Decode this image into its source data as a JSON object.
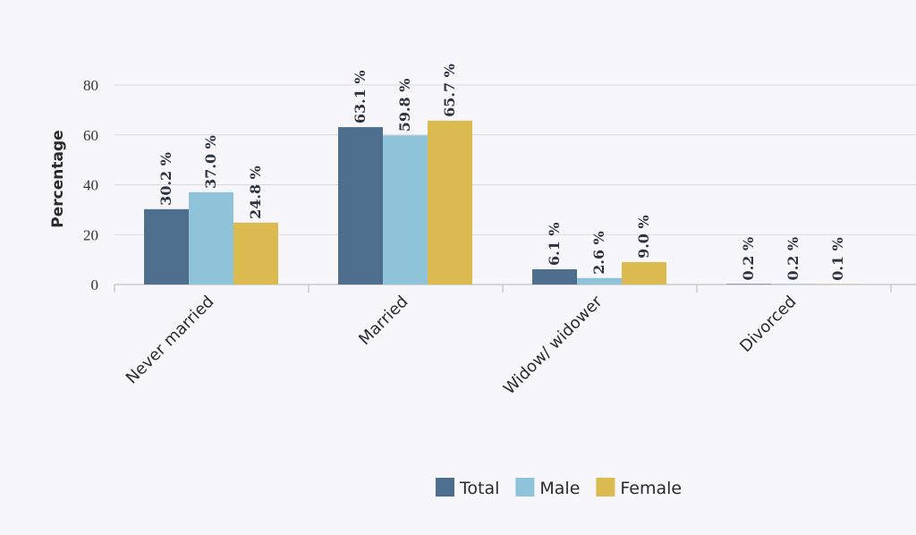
{
  "chart_data": {
    "type": "bar",
    "categories": [
      "Never married",
      "Married",
      "Widow/ widower",
      "Divorced"
    ],
    "series": [
      {
        "name": "Total",
        "color": "#4e6e8e",
        "values": [
          30.2,
          63.1,
          6.1,
          0.2
        ],
        "labels": [
          "30.2 %",
          "63.1 %",
          "6.1 %",
          "0.2 %"
        ]
      },
      {
        "name": "Male",
        "color": "#8ec3da",
        "values": [
          37.0,
          59.8,
          2.6,
          0.2
        ],
        "labels": [
          "37.0 %",
          "59.8 %",
          "2.6 %",
          "0.2 %"
        ]
      },
      {
        "name": "Female",
        "color": "#dbbb4f",
        "values": [
          24.8,
          65.7,
          9.0,
          0.1
        ],
        "labels": [
          "24.8 %",
          "65.7 %",
          "9.0 %",
          "0.1 %"
        ]
      }
    ],
    "ylabel": "Percentage",
    "xlabel": "",
    "ylim": [
      0,
      80
    ],
    "yticks": [
      0,
      20,
      40,
      60,
      80
    ],
    "ytick_labels": [
      "0",
      "20",
      "40",
      "60",
      "80"
    ],
    "grid": true,
    "legend": "bottom-center"
  }
}
